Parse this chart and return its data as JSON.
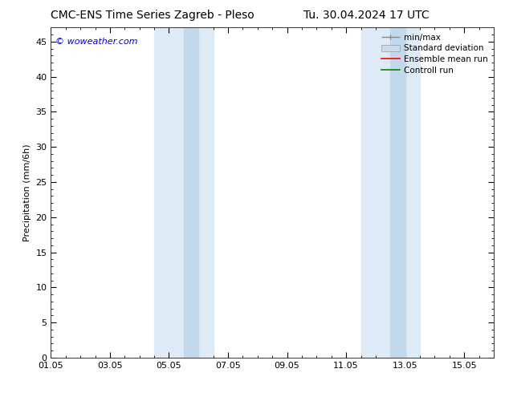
{
  "title_left": "CMC-ENS Time Series Zagreb - Pleso",
  "title_right": "Tu. 30.04.2024 17 UTC",
  "ylabel": "Precipitation (mm/6h)",
  "watermark": "© woweather.com",
  "watermark_color": "#0000dd",
  "ylim": [
    0,
    47
  ],
  "yticks": [
    0,
    5,
    10,
    15,
    20,
    25,
    30,
    35,
    40,
    45
  ],
  "xlim": [
    0,
    15
  ],
  "xtick_labels": [
    "01.05",
    "03.05",
    "05.05",
    "07.05",
    "09.05",
    "11.05",
    "13.05",
    "15.05"
  ],
  "xtick_positions": [
    0,
    2,
    4,
    6,
    8,
    10,
    12,
    14
  ],
  "shaded_regions_outer": [
    {
      "x_start": 3.5,
      "x_end": 5.5,
      "color": "#deeaf5"
    },
    {
      "x_start": 10.5,
      "x_end": 12.5,
      "color": "#deeaf5"
    }
  ],
  "shaded_regions_inner": [
    {
      "x_start": 4.5,
      "x_end": 5.0,
      "color": "#c2d8ec"
    },
    {
      "x_start": 11.5,
      "x_end": 12.0,
      "color": "#c2d8ec"
    }
  ],
  "legend_labels": [
    "min/max",
    "Standard deviation",
    "Ensemble mean run",
    "Controll run"
  ],
  "minmax_color": "#888888",
  "std_color": "#c8dced",
  "ensemble_color": "#ff0000",
  "control_color": "#008800",
  "background_color": "#ffffff",
  "title_fontsize": 10,
  "ylabel_fontsize": 8,
  "tick_fontsize": 8,
  "legend_fontsize": 7.5,
  "watermark_fontsize": 8
}
